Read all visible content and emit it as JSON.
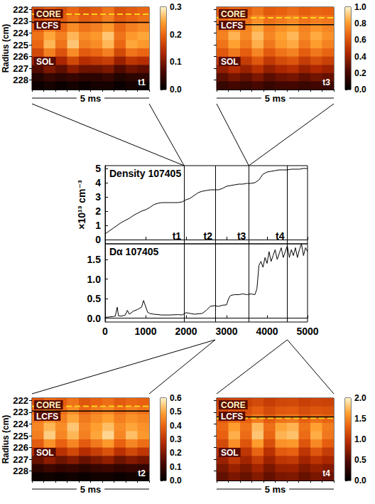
{
  "chart_data": [
    {
      "type": "heatmap",
      "title": "t1",
      "tick_labels": "y",
      "ylabel": "Radius (cm)",
      "scale_label": "5 ms",
      "labels": {
        "core": "CORE",
        "lcfs": "LCFS",
        "sol": "SOL"
      },
      "xlim": [
        0,
        5
      ],
      "x_edges": [
        0,
        0.5,
        1,
        1.5,
        2,
        2.5,
        3,
        3.5,
        4,
        4.5,
        5
      ],
      "ylim": [
        221.8,
        228.8
      ],
      "y_edges": [
        221.8,
        222.5,
        223.2,
        223.9,
        224.6,
        225.3,
        226.0,
        226.7,
        227.4,
        228.1,
        228.8
      ],
      "yticks": [
        222,
        223,
        224,
        225,
        226,
        227,
        228
      ],
      "core_radius": 222.4,
      "lcfs_radius": 223.1,
      "zlim": [
        0,
        0.3
      ],
      "zticks": [
        {
          "value": 0,
          "label": "0.0"
        },
        0.1,
        0.2,
        0.3
      ],
      "cells": [
        [
          0.17,
          0.19,
          0.18,
          0.2,
          0.18,
          0.19,
          0.21,
          0.18,
          0.19,
          0.2
        ],
        [
          0.18,
          0.2,
          0.19,
          0.21,
          0.19,
          0.2,
          0.22,
          0.19,
          0.2,
          0.21
        ],
        [
          0.19,
          0.22,
          0.2,
          0.23,
          0.21,
          0.22,
          0.24,
          0.2,
          0.22,
          0.23
        ],
        [
          0.21,
          0.25,
          0.22,
          0.26,
          0.23,
          0.24,
          0.27,
          0.21,
          0.24,
          0.25
        ],
        [
          0.2,
          0.26,
          0.21,
          0.27,
          0.22,
          0.23,
          0.26,
          0.2,
          0.25,
          0.24
        ],
        [
          0.17,
          0.22,
          0.18,
          0.23,
          0.19,
          0.2,
          0.22,
          0.17,
          0.21,
          0.2
        ],
        [
          0.12,
          0.16,
          0.13,
          0.17,
          0.14,
          0.15,
          0.16,
          0.12,
          0.15,
          0.14
        ],
        [
          0.07,
          0.1,
          0.08,
          0.11,
          0.09,
          0.09,
          0.1,
          0.07,
          0.09,
          0.08
        ],
        [
          0.03,
          0.05,
          0.04,
          0.05,
          0.04,
          0.04,
          0.05,
          0.03,
          0.04,
          0.04
        ],
        [
          0.01,
          0.02,
          0.01,
          0.02,
          0.01,
          0.02,
          0.02,
          0.01,
          0.02,
          0.01
        ]
      ]
    },
    {
      "type": "heatmap",
      "title": "t2",
      "tick_labels": "y",
      "ylabel": "Radius (cm)",
      "scale_label": "5 ms",
      "labels": {
        "core": "CORE",
        "lcfs": "LCFS",
        "sol": "SOL"
      },
      "xlim": [
        0,
        5
      ],
      "x_edges": [
        0,
        0.5,
        1,
        1.5,
        2,
        2.5,
        3,
        3.5,
        4,
        4.5,
        5
      ],
      "ylim": [
        221.8,
        228.8
      ],
      "y_edges": [
        221.8,
        222.5,
        223.2,
        223.9,
        224.6,
        225.3,
        226.0,
        226.7,
        227.4,
        228.1,
        228.8
      ],
      "yticks": [
        222,
        223,
        224,
        225,
        226,
        227,
        228
      ],
      "core_radius": 222.5,
      "lcfs_radius": 222.9,
      "zlim": [
        0,
        0.6
      ],
      "zticks": [
        {
          "value": 0,
          "label": "0.0"
        },
        0.1,
        0.2,
        0.3,
        0.4,
        0.5,
        0.6
      ],
      "cells": [
        [
          0.36,
          0.4,
          0.38,
          0.42,
          0.37,
          0.39,
          0.41,
          0.38,
          0.4,
          0.39
        ],
        [
          0.4,
          0.44,
          0.41,
          0.46,
          0.4,
          0.43,
          0.45,
          0.41,
          0.44,
          0.42
        ],
        [
          0.43,
          0.48,
          0.44,
          0.5,
          0.43,
          0.46,
          0.49,
          0.44,
          0.47,
          0.45
        ],
        [
          0.45,
          0.52,
          0.46,
          0.54,
          0.45,
          0.49,
          0.53,
          0.46,
          0.5,
          0.47
        ],
        [
          0.44,
          0.55,
          0.45,
          0.52,
          0.44,
          0.5,
          0.56,
          0.45,
          0.53,
          0.48
        ],
        [
          0.38,
          0.47,
          0.39,
          0.45,
          0.38,
          0.43,
          0.48,
          0.39,
          0.45,
          0.41
        ],
        [
          0.28,
          0.35,
          0.29,
          0.34,
          0.28,
          0.32,
          0.36,
          0.29,
          0.34,
          0.3
        ],
        [
          0.17,
          0.22,
          0.18,
          0.21,
          0.17,
          0.2,
          0.23,
          0.18,
          0.21,
          0.19
        ],
        [
          0.08,
          0.11,
          0.09,
          0.1,
          0.08,
          0.1,
          0.11,
          0.09,
          0.1,
          0.09
        ],
        [
          0.02,
          0.03,
          0.02,
          0.03,
          0.02,
          0.03,
          0.03,
          0.02,
          0.03,
          0.02
        ]
      ]
    },
    {
      "type": "heatmap",
      "title": "t3",
      "tick_labels": false,
      "scale_label": "5 ms",
      "labels": {
        "core": "CORE",
        "lcfs": "LCFS",
        "sol": "SOL"
      },
      "xlim": [
        0,
        5
      ],
      "x_edges": [
        0,
        0.5,
        1,
        1.5,
        2,
        2.5,
        3,
        3.5,
        4,
        4.5,
        5
      ],
      "ylim": [
        221.8,
        228.8
      ],
      "y_edges": [
        221.8,
        222.5,
        223.2,
        223.9,
        224.6,
        225.3,
        226.0,
        226.7,
        227.4,
        228.1,
        228.8
      ],
      "yticks": [
        222,
        223,
        224,
        225,
        226,
        227,
        228
      ],
      "core_radius": 222.7,
      "lcfs_radius": 223.3,
      "zlim": [
        0,
        1
      ],
      "zticks": [
        {
          "value": 0,
          "label": "0.0"
        },
        0.2,
        0.4,
        0.6,
        0.8,
        {
          "value": 1,
          "label": "1.0"
        }
      ],
      "cells": [
        [
          0.62,
          0.66,
          0.64,
          0.7,
          0.63,
          0.65,
          0.68,
          0.64,
          0.66,
          0.65
        ],
        [
          0.68,
          0.74,
          0.7,
          0.78,
          0.69,
          0.72,
          0.76,
          0.7,
          0.73,
          0.71
        ],
        [
          0.72,
          0.8,
          0.74,
          0.84,
          0.73,
          0.78,
          0.82,
          0.74,
          0.79,
          0.75
        ],
        [
          0.74,
          0.86,
          0.76,
          0.88,
          0.75,
          0.82,
          0.87,
          0.76,
          0.84,
          0.78
        ],
        [
          0.7,
          0.82,
          0.72,
          0.85,
          0.71,
          0.8,
          0.84,
          0.72,
          0.81,
          0.74
        ],
        [
          0.62,
          0.72,
          0.64,
          0.75,
          0.63,
          0.7,
          0.74,
          0.64,
          0.71,
          0.66
        ],
        [
          0.5,
          0.6,
          0.52,
          0.62,
          0.51,
          0.58,
          0.61,
          0.52,
          0.59,
          0.54
        ],
        [
          0.38,
          0.46,
          0.4,
          0.48,
          0.39,
          0.44,
          0.47,
          0.4,
          0.45,
          0.41
        ],
        [
          0.26,
          0.32,
          0.27,
          0.33,
          0.26,
          0.3,
          0.32,
          0.27,
          0.31,
          0.28
        ],
        [
          0.16,
          0.2,
          0.17,
          0.21,
          0.16,
          0.19,
          0.2,
          0.17,
          0.19,
          0.18
        ]
      ]
    },
    {
      "type": "heatmap",
      "title": "t4",
      "tick_labels": false,
      "scale_label": "5 ms",
      "labels": {
        "core": "CORE",
        "lcfs": "LCFS",
        "sol": "SOL"
      },
      "xlim": [
        0,
        5
      ],
      "x_edges": [
        0,
        0.5,
        1,
        1.5,
        2,
        2.5,
        3,
        3.5,
        4,
        4.5,
        5
      ],
      "ylim": [
        221.8,
        228.8
      ],
      "y_edges": [
        221.8,
        222.5,
        223.2,
        223.9,
        224.6,
        225.3,
        226.0,
        226.7,
        227.4,
        228.1,
        228.8
      ],
      "yticks": [
        222,
        223,
        224,
        225,
        226,
        227,
        228
      ],
      "core_radius": 223.5,
      "lcfs_radius": 223.4,
      "zlim": [
        0,
        2
      ],
      "zticks": [
        {
          "value": 0,
          "label": "0.0"
        },
        0.5,
        {
          "value": 1,
          "label": "1.0"
        },
        1.5,
        {
          "value": 2,
          "label": "2.0"
        }
      ],
      "cells": [
        [
          1.05,
          1.1,
          1.08,
          1.15,
          1.06,
          1.12,
          1.14,
          1.07,
          1.11,
          1.09
        ],
        [
          1.15,
          1.22,
          1.18,
          1.28,
          1.16,
          1.24,
          1.26,
          1.17,
          1.23,
          1.2
        ],
        [
          1.25,
          1.38,
          1.3,
          1.45,
          1.27,
          1.4,
          1.43,
          1.29,
          1.39,
          1.32
        ],
        [
          1.35,
          1.62,
          1.4,
          1.75,
          1.38,
          1.66,
          1.72,
          1.4,
          1.64,
          1.45
        ],
        [
          1.3,
          1.7,
          1.36,
          1.8,
          1.33,
          1.72,
          1.78,
          1.36,
          1.69,
          1.42
        ],
        [
          1.15,
          1.55,
          1.22,
          1.62,
          1.18,
          1.56,
          1.6,
          1.22,
          1.52,
          1.28
        ],
        [
          0.95,
          1.25,
          1.0,
          1.32,
          0.97,
          1.26,
          1.3,
          1.0,
          1.23,
          1.05
        ],
        [
          0.8,
          1.0,
          0.84,
          1.05,
          0.82,
          1.0,
          1.03,
          0.84,
          0.98,
          0.88
        ],
        [
          0.65,
          0.8,
          0.68,
          0.84,
          0.66,
          0.8,
          0.82,
          0.68,
          0.78,
          0.7
        ],
        [
          0.55,
          0.66,
          0.57,
          0.7,
          0.56,
          0.66,
          0.68,
          0.57,
          0.65,
          0.59
        ]
      ]
    },
    {
      "type": "line",
      "color": "#000000",
      "xlim": [
        0,
        5000
      ],
      "xticks": [
        0,
        1000,
        2000,
        3000,
        4000,
        5000
      ],
      "time_markers": [
        {
          "label": "t1",
          "time": 1950
        },
        {
          "label": "t2",
          "time": 2720
        },
        {
          "label": "t3",
          "time": 3550
        },
        {
          "label": "t4",
          "time": 4500
        }
      ],
      "panels": [
        {
          "title": "Density 107405",
          "ylabel": "×10¹³ cm⁻³",
          "ylim": [
            -0.3,
            5.2
          ],
          "yticks": [
            0,
            1,
            2,
            3,
            4,
            5
          ],
          "x": [
            0,
            100,
            200,
            300,
            400,
            500,
            600,
            700,
            800,
            900,
            1000,
            1100,
            1200,
            1300,
            1400,
            1500,
            1600,
            1700,
            1800,
            1900,
            2000,
            2100,
            2200,
            2300,
            2400,
            2500,
            2600,
            2700,
            2800,
            2900,
            3000,
            3100,
            3200,
            3300,
            3400,
            3500,
            3600,
            3700,
            3800,
            3900,
            4000,
            4100,
            4200,
            4300,
            4400,
            4500,
            4600,
            4700,
            4800,
            4900,
            5000
          ],
          "values": [
            0.4,
            0.6,
            0.8,
            1.0,
            1.2,
            1.35,
            1.5,
            1.7,
            1.85,
            2.0,
            2.1,
            2.25,
            2.45,
            2.55,
            2.6,
            2.6,
            2.6,
            2.6,
            2.6,
            2.65,
            2.8,
            2.9,
            3.1,
            3.3,
            3.4,
            3.45,
            3.5,
            3.5,
            3.5,
            3.6,
            3.75,
            3.8,
            3.85,
            3.9,
            3.9,
            3.95,
            3.95,
            4.0,
            4.2,
            4.6,
            4.75,
            4.8,
            4.85,
            4.9,
            4.9,
            4.9,
            4.95,
            4.95,
            4.95,
            5.0,
            5.0
          ]
        },
        {
          "title": "Dα 107405",
          "ylim": [
            -0.1,
            1.9
          ],
          "yticks": [
            {
              "value": 0,
              "label": "0.0"
            },
            0.5,
            {
              "value": 1,
              "label": "1.0"
            },
            1.5
          ],
          "x": [
            0,
            100,
            200,
            250,
            300,
            330,
            400,
            500,
            550,
            600,
            700,
            800,
            900,
            950,
            1000,
            1050,
            1100,
            1200,
            1400,
            1600,
            1800,
            1900,
            2000,
            2100,
            2200,
            2400,
            2500,
            2600,
            2700,
            2800,
            2900,
            3000,
            3050,
            3100,
            3200,
            3300,
            3400,
            3500,
            3600,
            3700,
            3750,
            3800,
            3850,
            3900,
            3950,
            4000,
            4050,
            4100,
            4150,
            4200,
            4250,
            4300,
            4350,
            4400,
            4450,
            4500,
            4550,
            4600,
            4650,
            4700,
            4750,
            4800,
            4850,
            4900,
            4950,
            5000
          ],
          "values": [
            0.02,
            0.03,
            0.04,
            0.05,
            0.28,
            0.06,
            0.05,
            0.08,
            0.2,
            0.1,
            0.18,
            0.22,
            0.28,
            0.45,
            0.3,
            0.15,
            0.12,
            0.1,
            0.08,
            0.08,
            0.09,
            0.08,
            0.14,
            0.12,
            0.1,
            0.12,
            0.2,
            0.3,
            0.32,
            0.3,
            0.33,
            0.34,
            0.5,
            0.58,
            0.6,
            0.6,
            0.62,
            0.6,
            0.62,
            0.6,
            0.75,
            1.35,
            1.45,
            1.3,
            1.55,
            1.4,
            1.7,
            1.45,
            1.6,
            1.75,
            1.5,
            1.65,
            1.8,
            1.55,
            1.7,
            1.85,
            1.55,
            1.75,
            1.6,
            1.8,
            1.55,
            1.75,
            1.9,
            1.6,
            1.8,
            1.7
          ]
        }
      ]
    }
  ]
}
